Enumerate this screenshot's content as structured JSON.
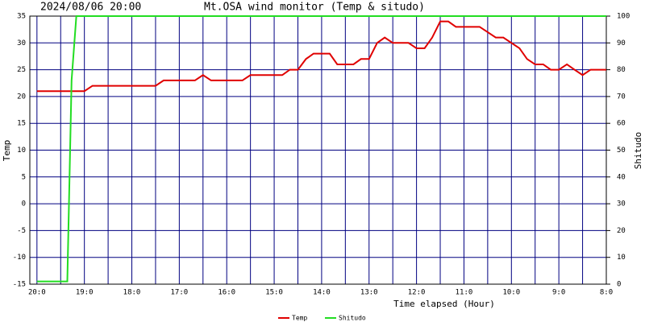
{
  "chart_data": {
    "type": "line",
    "title": "Mt.OSA wind monitor (Temp & situdo)",
    "timestamp": "2024/08/06 20:00",
    "x_label": "Time elapsed (Hour)",
    "y_label": "Temp",
    "y2_label": "Shitudo",
    "xlim": [
      -0.15,
      12
    ],
    "xticks": [
      {
        "value": 0,
        "label": "20:0"
      },
      {
        "value": 1,
        "label": "19:0"
      },
      {
        "value": 2,
        "label": "18:0"
      },
      {
        "value": 3,
        "label": "17:0"
      },
      {
        "value": 4,
        "label": "16:0"
      },
      {
        "value": 5,
        "label": "15:0"
      },
      {
        "value": 6,
        "label": "14:0"
      },
      {
        "value": 7,
        "label": "13:0"
      },
      {
        "value": 8,
        "label": "12:0"
      },
      {
        "value": 9,
        "label": "11:0"
      },
      {
        "value": 10,
        "label": "10:0"
      },
      {
        "value": 11,
        "label": "9:0"
      },
      {
        "value": 12,
        "label": "8:0"
      }
    ],
    "minor_xticks": [
      0.5,
      1.5,
      2.5,
      3.5,
      4.5,
      5.5,
      6.5,
      7.5,
      8.5,
      9.5,
      10.5,
      11.5
    ],
    "ylim": [
      -15,
      35
    ],
    "yticks": [
      -15,
      -10,
      -5,
      0,
      5,
      10,
      15,
      20,
      25,
      30,
      35
    ],
    "y2lim": [
      0,
      100
    ],
    "y2ticks": [
      0,
      10,
      20,
      30,
      40,
      50,
      60,
      70,
      80,
      90,
      100
    ],
    "grid": true,
    "series": [
      {
        "name": "Temp",
        "color": "#e00000",
        "x": [
          0,
          1.0,
          1.17,
          2.5,
          2.67,
          3.33,
          3.5,
          3.67,
          4.33,
          4.5,
          5.17,
          5.33,
          5.5,
          5.67,
          5.83,
          6.17,
          6.33,
          6.67,
          6.83,
          7.0,
          7.17,
          7.33,
          7.5,
          7.83,
          8.0,
          8.17,
          8.33,
          8.5,
          8.67,
          8.83,
          9.33,
          9.5,
          9.67,
          9.83,
          10.0,
          10.17,
          10.33,
          10.5,
          10.67,
          10.83,
          11.0,
          11.17,
          11.33,
          11.5,
          11.67,
          12.0
        ],
        "values": [
          21,
          21,
          22,
          22,
          23,
          23,
          24,
          23,
          23,
          24,
          24,
          25,
          25,
          27,
          28,
          28,
          26,
          26,
          27,
          27,
          30,
          31,
          30,
          30,
          29,
          29,
          31,
          34,
          34,
          33,
          33,
          32,
          31,
          31,
          30,
          29,
          27,
          26,
          26,
          25,
          25,
          26,
          25,
          24,
          25,
          25
        ]
      },
      {
        "name": "Shitudo",
        "color": "#22dd22",
        "axis": "y2",
        "x": [
          0,
          0.64,
          0.73,
          0.83,
          12
        ],
        "values": [
          1,
          1,
          76,
          100,
          100
        ]
      }
    ]
  }
}
